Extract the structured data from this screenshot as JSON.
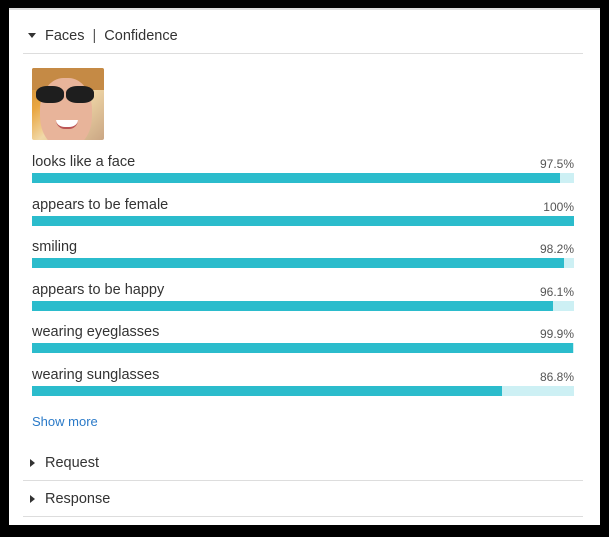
{
  "faces_section": {
    "title": "Faces",
    "subtitle": "Confidence",
    "expanded": true,
    "thumbnail": "face-thumbnail",
    "items": [
      {
        "label": "looks like a face",
        "value": "97.5%",
        "fraction": 0.975
      },
      {
        "label": "appears to be female",
        "value": "100%",
        "fraction": 1.0
      },
      {
        "label": "smiling",
        "value": "98.2%",
        "fraction": 0.982
      },
      {
        "label": "appears to be happy",
        "value": "96.1%",
        "fraction": 0.961
      },
      {
        "label": "wearing eyeglasses",
        "value": "99.9%",
        "fraction": 0.999
      },
      {
        "label": "wearing sunglasses",
        "value": "86.8%",
        "fraction": 0.868
      }
    ],
    "show_more": "Show more"
  },
  "request_section": {
    "title": "Request",
    "expanded": false
  },
  "response_section": {
    "title": "Response",
    "expanded": false
  },
  "colors": {
    "bar_fill": "#2bbccc",
    "bar_track": "#cdf0f4",
    "link": "#2a7ac8"
  }
}
